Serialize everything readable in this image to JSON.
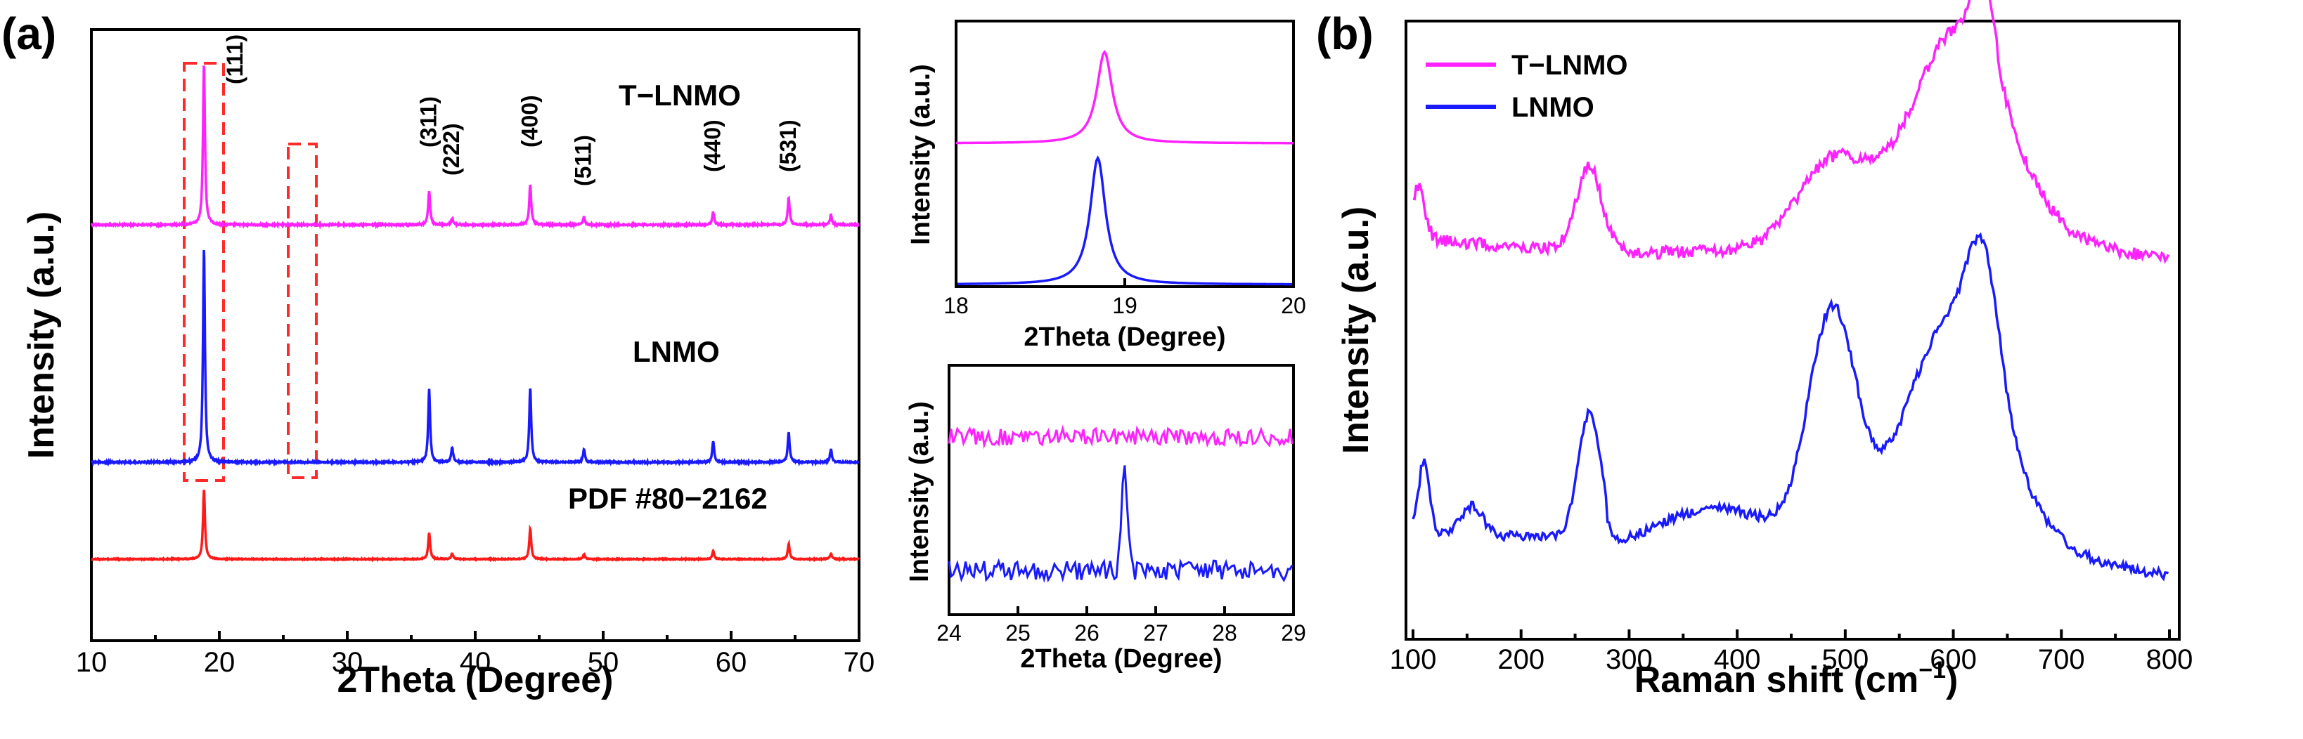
{
  "panel_labels": {
    "a": "(a)",
    "b": "(b)"
  },
  "colors": {
    "tlnmo": "#ff22ff",
    "lnmo": "#1a1aff",
    "pdf": "#ff1a1a"
  },
  "chart_data": [
    {
      "id": "xrd_main",
      "type": "line",
      "xlabel": "2Theta (Degree)",
      "ylabel": "Intensity (a.u.)",
      "xlim": [
        10,
        70
      ],
      "xticks": [
        "10",
        "20",
        "30",
        "40",
        "50",
        "60",
        "70"
      ],
      "series_labels": [
        "T−LNMO",
        "LNMO",
        "PDF #80−2162"
      ],
      "peaks_2theta": [
        18.8,
        36.4,
        38.2,
        44.3,
        48.5,
        58.6,
        64.5,
        67.8
      ],
      "peak_intensity_relative": {
        "T−LNMO": [
          1.0,
          0.21,
          0.04,
          0.25,
          0.05,
          0.08,
          0.17,
          0.06
        ],
        "LNMO": [
          1.0,
          0.34,
          0.07,
          0.35,
          0.06,
          0.1,
          0.14,
          0.06
        ],
        "PDF #80−2162": [
          1.0,
          0.38,
          0.08,
          0.44,
          0.07,
          0.12,
          0.22,
          0.08
        ]
      },
      "peak_labels": [
        {
          "text": "(111)",
          "x": 18.8
        },
        {
          "text": "(311)",
          "x": 36.4
        },
        {
          "text": "(222)",
          "x": 38.2
        },
        {
          "text": "(400)",
          "x": 44.3
        },
        {
          "text": "(511)",
          "x": 48.5
        },
        {
          "text": "(440)",
          "x": 58.6
        },
        {
          "text": "(531)",
          "x": 64.5
        }
      ],
      "highlight_ranges_2theta": [
        [
          17.2,
          20.3
        ],
        [
          25.8,
          27.5
        ]
      ]
    },
    {
      "id": "xrd_inset_111",
      "type": "line",
      "xlabel": "2Theta (Degree)",
      "ylabel": "Intensity (a.u.)",
      "xlim": [
        18,
        20
      ],
      "xticks": [
        "18",
        "19",
        "20"
      ],
      "peak_center": {
        "T−LNMO": 18.88,
        "LNMO": 18.84
      }
    },
    {
      "id": "xrd_inset_26",
      "type": "line",
      "xlabel": "2Theta (Degree)",
      "ylabel": "Intensity (a.u.)",
      "xlim": [
        24,
        29
      ],
      "xticks": [
        "24",
        "25",
        "26",
        "27",
        "28",
        "29"
      ],
      "peak_center": {
        "LNMO": 26.55
      }
    },
    {
      "id": "raman",
      "type": "line",
      "xlabel": "Raman shift (cm",
      "xlabel_superscript": "−1",
      "xlabel_suffix": ")",
      "ylabel": "Intensity (a.u.)",
      "xlim": [
        100,
        800
      ],
      "xticks": [
        "100",
        "200",
        "300",
        "400",
        "500",
        "600",
        "700",
        "800"
      ],
      "legend": [
        "T−LNMO",
        "LNMO"
      ],
      "bands_cm1": [
        263,
        488,
        628
      ]
    }
  ]
}
